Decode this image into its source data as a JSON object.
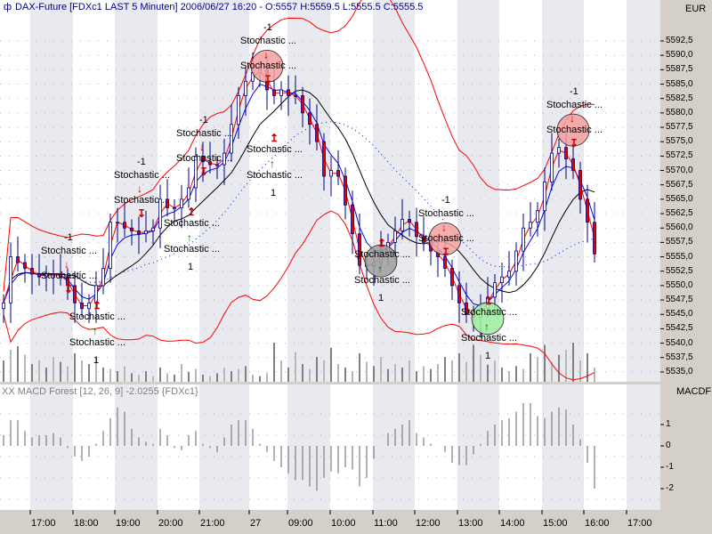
{
  "header": {
    "icon": "chart-symbol-icon",
    "title": "DAX-Future [FDXc1 LAST 5 Minuten] 2006/06/27 16:20 - O:5557 H:5559.5 L:5555.5 C:5555.5"
  },
  "colors": {
    "candle_up": "#ffffff",
    "candle_down": "#e00000",
    "wick": "#000080",
    "band": "#ff0000",
    "fast_ma": "#0000ff",
    "slow_ma": "#000000",
    "volume": "#808080",
    "macd": "#808080",
    "stripe": "#e9e9f0",
    "panel": "#d4d0c8"
  },
  "chart_data": [
    {
      "type": "candlestick",
      "title": "DAX-Future [FDXc1 LAST 5 Minuten]",
      "unit_label": "EUR",
      "ylim": [
        5533.5,
        5594
      ],
      "yticks": [
        "5592,5",
        "5590,0",
        "5587,5",
        "5585,0",
        "5582,5",
        "5580,0",
        "5577,5",
        "5575,0",
        "5572,5",
        "5570,0",
        "5567,5",
        "5565,0",
        "5562,5",
        "5560,0",
        "5557,5",
        "5555,0",
        "5552,5",
        "5550,0",
        "5547,5",
        "5545,0",
        "5542,5",
        "5540,0",
        "5537,5",
        "5535,0"
      ],
      "xticks": [
        "17:00",
        "18:00",
        "19:00",
        "20:00",
        "21:00",
        "27",
        "09:00",
        "10:00",
        "11:00",
        "12:00",
        "13:00",
        "14:00",
        "15:00",
        "16:00",
        "17:00"
      ],
      "close": [
        5547,
        5555,
        5554,
        5553,
        5552,
        5551.5,
        5552,
        5552,
        5551.5,
        5550,
        5547,
        5546,
        5547,
        5550,
        5553,
        5561,
        5561,
        5560,
        5559.5,
        5559,
        5559.5,
        5560,
        5565,
        5563.5,
        5563.5,
        5565,
        5567,
        5572.5,
        5571.5,
        5571,
        5571,
        5573,
        5578,
        5583,
        5585.5,
        5587,
        5587.5,
        5584,
        5583,
        5584,
        5583,
        5583,
        5580,
        5578,
        5575,
        5569,
        5570,
        5569,
        5564,
        5559,
        5553.5,
        5553.5,
        5554,
        5556,
        5557.5,
        5559.5,
        5561.5,
        5561,
        5558.5,
        5557.5,
        5556,
        5555,
        5553,
        5550,
        5547,
        5545,
        5544.5,
        5546,
        5548,
        5550.5,
        5551.5,
        5552.5,
        5556,
        5560,
        5561,
        5563,
        5568,
        5573,
        5574,
        5572,
        5570,
        5565,
        5561,
        5555.5
      ],
      "volume": [
        30,
        45,
        50,
        38,
        25,
        30,
        20,
        35,
        28,
        22,
        40,
        30,
        25,
        35,
        20,
        18,
        15,
        22,
        12,
        10,
        15,
        8,
        20,
        12,
        10,
        25,
        14,
        18,
        10,
        8,
        12,
        20,
        15,
        18,
        22,
        10,
        8,
        12,
        55,
        30,
        20,
        42,
        25,
        18,
        35,
        30,
        48,
        25,
        20,
        15,
        40,
        28,
        22,
        35,
        18,
        25,
        20,
        30,
        15,
        22,
        18,
        25,
        35,
        30,
        40,
        28,
        52,
        38,
        24,
        30,
        20,
        15,
        22,
        18,
        40,
        35,
        52,
        28,
        38,
        45,
        55,
        30,
        40,
        20
      ],
      "signals": [
        {
          "bar": 9,
          "price": 5557.9,
          "value": "-1",
          "label": "Stochastic ...",
          "side": "sell"
        },
        {
          "bar": 23,
          "price": 5571.0,
          "value": "-1",
          "label": "Stochastic ...",
          "side": "sell"
        },
        {
          "bar": 28,
          "price": 5578.3,
          "value": "-1",
          "label": "Stochastic ...",
          "side": "sell"
        },
        {
          "bar": 37,
          "price": 5594.3,
          "value": "-1",
          "label": "Stochastic ...",
          "side": "sell",
          "circle": "#f4a0a0"
        },
        {
          "bar": 62,
          "price": 5564.3,
          "value": "-1",
          "label": "Stochastic ...",
          "side": "sell",
          "circle": "#f4a0a0"
        },
        {
          "bar": 80,
          "price": 5583.2,
          "value": "-1",
          "label": "Stochastic ...",
          "side": "sell",
          "circle": "#f4a0a0"
        },
        {
          "bar": 13,
          "price": 5537.0,
          "value": "1",
          "label": "Stochastic ...",
          "side": "buy"
        },
        {
          "bar": 25,
          "price": 5553.2,
          "value": "1",
          "label": "Stochastic ...",
          "side": "buy"
        },
        {
          "bar": 31,
          "price": 5566.1,
          "value": "1",
          "label": "Stochastic ...",
          "side": "buy"
        },
        {
          "bar": 53,
          "price": 5547.8,
          "value": "1",
          "label": "Stochastic ...",
          "side": "buy",
          "circle": "#a0a0a0"
        },
        {
          "bar": 68,
          "price": 5537.8,
          "value": "1",
          "label": "Stochastic ...",
          "side": "buy",
          "circle": "#a0f0a0"
        }
      ]
    },
    {
      "type": "bar",
      "title": "XX MACD Forest [12, 26, 9] -2.0255 {FDXc1}",
      "unit_label": "MACDF",
      "yticks": [
        "1",
        "0",
        "-1",
        "-2"
      ],
      "values": [
        0.5,
        1.2,
        1.2,
        0.7,
        0.4,
        0.5,
        0.5,
        0.6,
        0.4,
        -0.1,
        -0.5,
        -0.7,
        -0.5,
        0.1,
        0.7,
        1.3,
        1.8,
        1.6,
        0.8,
        0.4,
        0.2,
        0.1,
        0.8,
        0.5,
        -0.1,
        -0.2,
        0.5,
        0.7,
        0.1,
        -0.1,
        -0.3,
        0.4,
        1.0,
        1.2,
        1.2,
        0.8,
        0.1,
        -0.3,
        -0.7,
        -1.0,
        -1.3,
        -1.6,
        -1.6,
        -1.9,
        -2.1,
        -1.5,
        -1.2,
        -1.3,
        -1.0,
        -1.1,
        -1.9,
        -1.5,
        -0.6,
        0.0,
        0.6,
        0.8,
        1.0,
        1.2,
        0.6,
        0.4,
        0.1,
        0.0,
        -0.3,
        -0.8,
        -0.9,
        -0.9,
        -0.4,
        0.1,
        0.7,
        1.0,
        1.2,
        1.3,
        1.6,
        2.0,
        2.0,
        1.4,
        1.3,
        1.6,
        1.8,
        1.7,
        1.0,
        0.3,
        -0.8,
        -2.0
      ]
    }
  ]
}
